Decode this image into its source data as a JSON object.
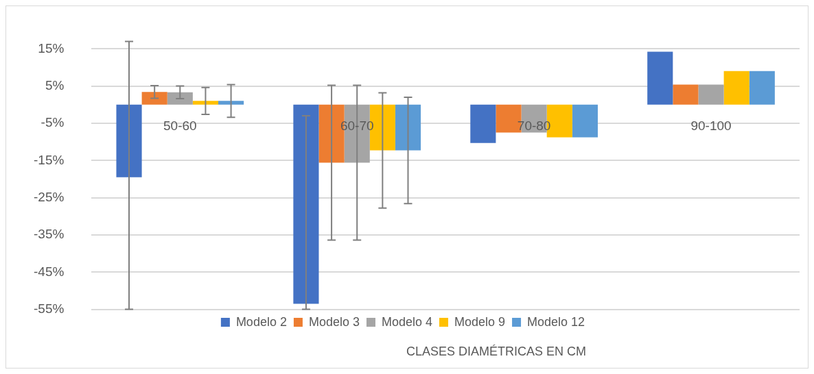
{
  "chart_data": {
    "type": "bar",
    "xlabel": "CLASES DIAMÉTRICAS EN CM",
    "categories": [
      "50-60",
      "60-70",
      "70-80",
      "90-100"
    ],
    "series": [
      {
        "name": "Modelo 2",
        "color": "#4472c4",
        "values": [
          -19.5,
          -53.5,
          -10.3,
          14.2
        ],
        "errors": [
          [
            -55,
            17
          ],
          [
            -55,
            -3
          ],
          null,
          null
        ]
      },
      {
        "name": "Modelo 3",
        "color": "#ed7d31",
        "values": [
          3.4,
          -15.6,
          -7.5,
          5.4
        ],
        "errors": [
          1.7,
          20.8,
          null,
          null
        ]
      },
      {
        "name": "Modelo 4",
        "color": "#a5a5a5",
        "values": [
          3.3,
          -15.6,
          -7.5,
          5.4
        ],
        "errors": [
          1.7,
          20.8,
          null,
          null
        ]
      },
      {
        "name": "Modelo 9",
        "color": "#ffc000",
        "values": [
          1,
          -12.3,
          -8.8,
          9
        ],
        "errors": [
          3.6,
          15.5,
          null,
          null
        ]
      },
      {
        "name": "Modelo 12",
        "color": "#5b9bd5",
        "values": [
          1,
          -12.3,
          -8.8,
          9
        ],
        "errors": [
          4.4,
          14.3,
          null,
          null
        ]
      }
    ],
    "ylim": [
      -55,
      17
    ],
    "yticks": [
      {
        "value": -55,
        "label": "-55%"
      },
      {
        "value": -45,
        "label": "-45%"
      },
      {
        "value": -35,
        "label": "-35%"
      },
      {
        "value": -25,
        "label": "-25%"
      },
      {
        "value": -15,
        "label": "-15%"
      },
      {
        "value": -5,
        "label": "-5%"
      },
      {
        "value": 5,
        "label": "5%"
      },
      {
        "value": 15,
        "label": "15%"
      }
    ],
    "grid": "y",
    "legend": "bottom"
  }
}
